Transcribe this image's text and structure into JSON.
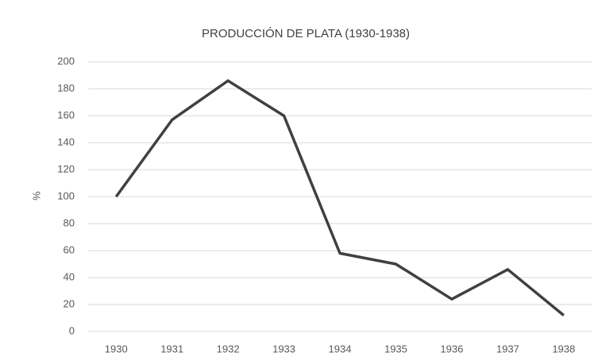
{
  "chart_data": {
    "type": "line",
    "title": "PRODUCCIÓN DE PLATA  (1930-1938)",
    "y_label": "%",
    "categories": [
      "1930",
      "1931",
      "1932",
      "1933",
      "1934",
      "1935",
      "1936",
      "1937",
      "1938"
    ],
    "values": [
      100,
      157,
      186,
      160,
      58,
      50,
      24,
      46,
      12
    ],
    "color": "#404040",
    "ylim": [
      0,
      200
    ],
    "yticks": [
      0,
      20,
      40,
      60,
      80,
      100,
      120,
      140,
      160,
      180,
      200
    ],
    "grid": true
  }
}
